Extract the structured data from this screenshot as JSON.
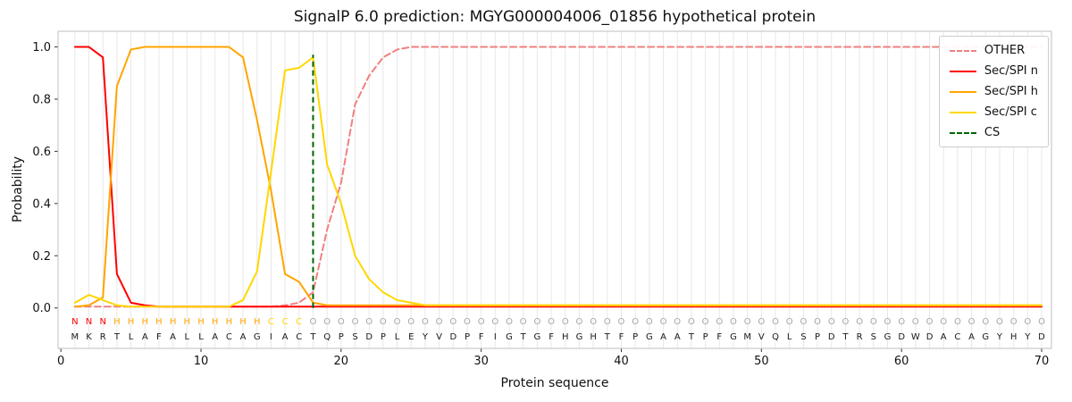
{
  "chart_data": {
    "type": "line",
    "title": "SignalP 6.0 prediction: MGYG000004006_01856 hypothetical protein",
    "xlabel": "Protein sequence",
    "ylabel": "Probability",
    "xlim": [
      -0.2,
      70.7
    ],
    "ylim": [
      -0.155,
      1.06
    ],
    "grid": "vertical-per-residue",
    "grid_color": "#e8e8e8",
    "border_color": "#bfbfbf",
    "legend_position": "upper right",
    "xticks": {
      "values": [
        0,
        10,
        20,
        30,
        40,
        50,
        60,
        70
      ],
      "labels": [
        "0",
        "10",
        "20",
        "30",
        "40",
        "50",
        "60",
        "70"
      ]
    },
    "yticks": {
      "values": [
        0,
        0.2,
        0.4,
        0.6,
        0.8,
        1.0
      ],
      "labels": [
        "0.0",
        "0.2",
        "0.4",
        "0.6",
        "0.8",
        "1.0"
      ]
    },
    "sequence": "MKRTLAFALLACAGIACTQPSDPLEYVDPFIGTGFHGHTFPGAATPFGMVQLSPDTRSGDWDACAGYHYD",
    "regions": "NNNHHHHHHHHHHHCCCOOOOOOOOOOOOOOOOOOOOOOOOOOOOOOOOOOOOOOOOOOOOOOOOOOOOO",
    "region_colors": {
      "N": "#ff0000",
      "H": "#ffa500",
      "C": "#ffd700",
      "O": "#a6a6a6"
    },
    "aa_color": "#1a1a1a",
    "cs": {
      "label": "CS",
      "position": 18,
      "top": 0.97,
      "color": "#006400"
    },
    "series": [
      {
        "name": "OTHER",
        "color": "#f08080",
        "dash": true,
        "values": [
          0.005,
          0.005,
          0.005,
          0.005,
          0.005,
          0.005,
          0.005,
          0.005,
          0.005,
          0.005,
          0.005,
          0.005,
          0.005,
          0.005,
          0.005,
          0.01,
          0.02,
          0.06,
          0.3,
          0.48,
          0.78,
          0.89,
          0.96,
          0.99,
          1.0,
          1.0,
          1.0,
          1.0,
          1.0,
          1.0,
          1.0,
          1.0,
          1.0,
          1.0,
          1.0,
          1.0,
          1.0,
          1.0,
          1.0,
          1.0,
          1.0,
          1.0,
          1.0,
          1.0,
          1.0,
          1.0,
          1.0,
          1.0,
          1.0,
          1.0,
          1.0,
          1.0,
          1.0,
          1.0,
          1.0,
          1.0,
          1.0,
          1.0,
          1.0,
          1.0,
          1.0,
          1.0,
          1.0,
          1.0,
          1.0,
          1.0,
          1.0,
          1.0,
          1.0,
          1.0
        ]
      },
      {
        "name": "Sec/SPI n",
        "color": "#ff0000",
        "dash": false,
        "values": [
          1.0,
          1.0,
          0.96,
          0.13,
          0.02,
          0.01,
          0.005,
          0.005,
          0.005,
          0.005,
          0.005,
          0.005,
          0.005,
          0.005,
          0.005,
          0.005,
          0.005,
          0.005,
          0.005,
          0.005,
          0.005,
          0.005,
          0.005,
          0.005,
          0.005,
          0.005,
          0.005,
          0.005,
          0.005,
          0.005,
          0.005,
          0.005,
          0.005,
          0.005,
          0.005,
          0.005,
          0.005,
          0.005,
          0.005,
          0.005,
          0.005,
          0.005,
          0.005,
          0.005,
          0.005,
          0.005,
          0.005,
          0.005,
          0.005,
          0.005,
          0.005,
          0.005,
          0.005,
          0.005,
          0.005,
          0.005,
          0.005,
          0.005,
          0.005,
          0.005,
          0.005,
          0.005,
          0.005,
          0.005,
          0.005,
          0.005,
          0.005,
          0.005,
          0.005,
          0.005
        ]
      },
      {
        "name": "Sec/SPI h",
        "color": "#ffa500",
        "dash": false,
        "values": [
          0.005,
          0.01,
          0.04,
          0.85,
          0.99,
          1.0,
          1.0,
          1.0,
          1.0,
          1.0,
          1.0,
          1.0,
          0.96,
          0.72,
          0.45,
          0.13,
          0.1,
          0.02,
          0.01,
          0.01,
          0.01,
          0.01,
          0.01,
          0.01,
          0.01,
          0.01,
          0.01,
          0.01,
          0.01,
          0.01,
          0.01,
          0.01,
          0.01,
          0.01,
          0.01,
          0.01,
          0.01,
          0.01,
          0.01,
          0.01,
          0.01,
          0.01,
          0.01,
          0.01,
          0.01,
          0.01,
          0.01,
          0.01,
          0.01,
          0.01,
          0.01,
          0.01,
          0.01,
          0.01,
          0.01,
          0.01,
          0.01,
          0.01,
          0.01,
          0.01,
          0.01,
          0.01,
          0.01,
          0.01,
          0.01,
          0.01,
          0.01,
          0.01,
          0.01,
          0.01
        ]
      },
      {
        "name": "Sec/SPI c",
        "color": "#ffd700",
        "dash": false,
        "values": [
          0.02,
          0.05,
          0.03,
          0.01,
          0.005,
          0.005,
          0.005,
          0.005,
          0.005,
          0.005,
          0.005,
          0.005,
          0.03,
          0.14,
          0.52,
          0.91,
          0.92,
          0.96,
          0.55,
          0.4,
          0.2,
          0.11,
          0.06,
          0.03,
          0.02,
          0.01,
          0.01,
          0.01,
          0.01,
          0.01,
          0.01,
          0.01,
          0.01,
          0.01,
          0.01,
          0.01,
          0.01,
          0.01,
          0.01,
          0.01,
          0.01,
          0.01,
          0.01,
          0.01,
          0.01,
          0.01,
          0.01,
          0.01,
          0.01,
          0.01,
          0.01,
          0.01,
          0.01,
          0.01,
          0.01,
          0.01,
          0.01,
          0.01,
          0.01,
          0.01,
          0.01,
          0.01,
          0.01,
          0.01,
          0.01,
          0.01,
          0.01,
          0.01,
          0.01,
          0.01
        ]
      }
    ],
    "legend": [
      {
        "label": "OTHER",
        "color": "#f08080",
        "dash": true
      },
      {
        "label": "Sec/SPI n",
        "color": "#ff0000",
        "dash": false
      },
      {
        "label": "Sec/SPI h",
        "color": "#ffa500",
        "dash": false
      },
      {
        "label": "Sec/SPI c",
        "color": "#ffd700",
        "dash": false
      },
      {
        "label": "CS",
        "color": "#006400",
        "dash": true
      }
    ]
  }
}
